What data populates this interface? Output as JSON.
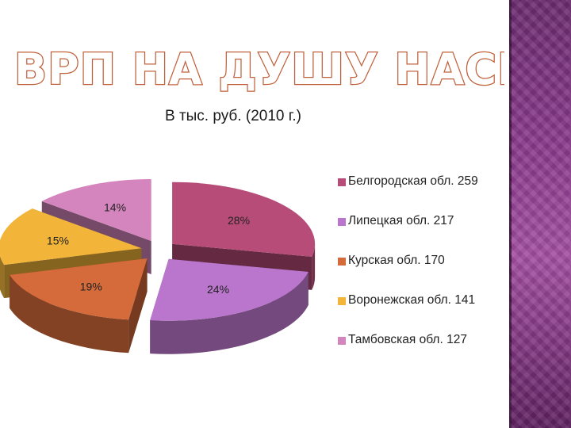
{
  "slide": {
    "title": "ВРП НА ДУШУ НАСЕЛЕНИЯ",
    "subtitle": "В тыс. руб. (2010 г.)"
  },
  "colors": {
    "accent_purple": "#8a3a8c",
    "title_fill": "#ffffff",
    "title_outline": "#c0603a"
  },
  "chart_data": {
    "type": "pie",
    "title": "В тыс. руб. (2010 г.)",
    "style": "exploded 3D pie",
    "legend_position": "right",
    "slices": [
      {
        "label": "Белгородская обл. 259",
        "category": "Белгородская обл.",
        "value": 259,
        "percent_label": "28%",
        "color": "#b84c78"
      },
      {
        "label": "Липецкая обл. 217",
        "category": "Липецкая обл.",
        "value": 217,
        "percent_label": "24%",
        "color": "#b976cc"
      },
      {
        "label": "Курская обл. 170",
        "category": "Курская обл.",
        "value": 170,
        "percent_label": "19%",
        "color": "#d56a3a"
      },
      {
        "label": "Воронежская обл. 141",
        "category": "Воронежская обл.",
        "value": 141,
        "percent_label": "15%",
        "color": "#f2b53a"
      },
      {
        "label": "Тамбовская обл. 127",
        "category": "Тамбовская обл.",
        "value": 127,
        "percent_label": "14%",
        "color": "#d585bd"
      }
    ]
  }
}
